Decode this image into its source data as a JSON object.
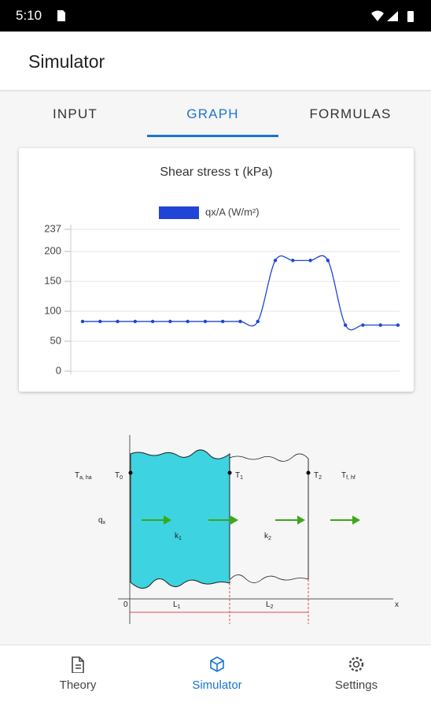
{
  "status_bar": {
    "time": "5:10"
  },
  "app_bar": {
    "title": "Simulator"
  },
  "tabs": {
    "items": [
      "INPUT",
      "GRAPH",
      "FORMULAS"
    ],
    "selected": 1
  },
  "chart_data": {
    "type": "line",
    "title": "Shear stress τ (kPa)",
    "series": [
      {
        "name": "qx/A (W/m²)",
        "color": "#1f45d6",
        "values": [
          83,
          83,
          83,
          83,
          83,
          83,
          83,
          83,
          83,
          83,
          83,
          185,
          185,
          185,
          185,
          77,
          77,
          77,
          77
        ]
      }
    ],
    "ylim": [
      0,
      237
    ],
    "yticks": [
      0,
      50,
      100,
      150,
      200,
      237
    ],
    "grid": true
  },
  "diagram": {
    "labels": [
      {
        "text": "T",
        "sub": "a, ha"
      },
      {
        "text": "T",
        "sub": "0"
      },
      {
        "text": "T",
        "sub": "1"
      },
      {
        "text": "T",
        "sub": "2"
      },
      {
        "text": "T",
        "sub": "f, hf"
      },
      {
        "text": "q",
        "sub": "x"
      },
      {
        "text": "k",
        "sub": "1"
      },
      {
        "text": "k",
        "sub": "2"
      },
      {
        "text": "0"
      },
      {
        "text": "L",
        "sub": "1"
      },
      {
        "text": "L",
        "sub": "2"
      },
      {
        "text": "x"
      }
    ]
  },
  "bottom_nav": {
    "items": [
      "Theory",
      "Simulator",
      "Settings"
    ],
    "selected": 1
  }
}
